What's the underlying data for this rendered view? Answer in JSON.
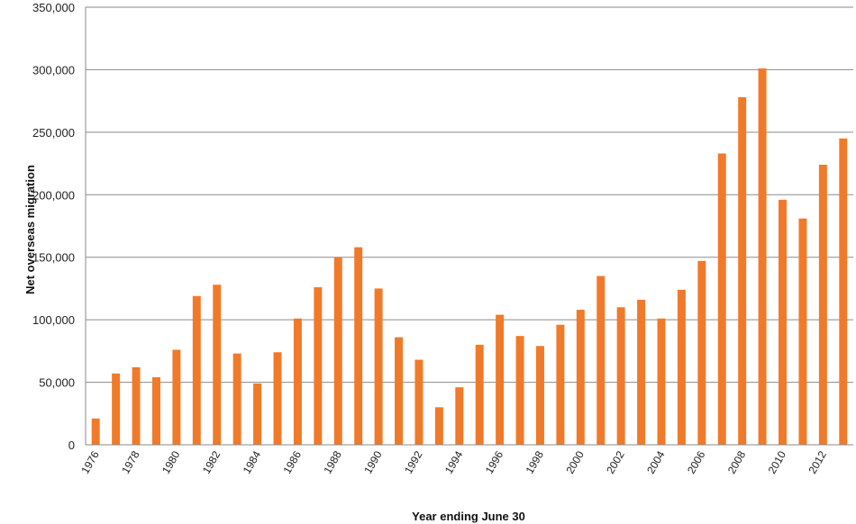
{
  "chart_data": {
    "type": "bar",
    "title": "",
    "xlabel": "Year ending June 30",
    "ylabel": "Net overseas migration",
    "ylim": [
      0,
      350000
    ],
    "yticks": [
      0,
      50000,
      100000,
      150000,
      200000,
      250000,
      300000,
      350000
    ],
    "ytick_labels": [
      "0",
      "50,000",
      "100,000",
      "150,000",
      "200,000",
      "250,000",
      "300,000",
      "350,000"
    ],
    "grid": true,
    "legend": "none",
    "bar_color": "#f07a2a",
    "categories": [
      "1976",
      "1977",
      "1978",
      "1979",
      "1980",
      "1981",
      "1982",
      "1983",
      "1984",
      "1985",
      "1986",
      "1987",
      "1988",
      "1989",
      "1990",
      "1991",
      "1992",
      "1993",
      "1994",
      "1995",
      "1996",
      "1997",
      "1998",
      "1999",
      "2000",
      "2001",
      "2002",
      "2003",
      "2004",
      "2005",
      "2006",
      "2007",
      "2008",
      "2009",
      "2010",
      "2011",
      "2012",
      "2013"
    ],
    "xtick_labels": [
      "1976",
      "1978",
      "1980",
      "1982",
      "1984",
      "1986",
      "1988",
      "1990",
      "1992",
      "1994",
      "1996",
      "1998",
      "2000",
      "2002",
      "2004",
      "2006",
      "2008",
      "2010",
      "2012"
    ],
    "values": [
      21000,
      57000,
      62000,
      54000,
      76000,
      119000,
      128000,
      73000,
      49000,
      74000,
      101000,
      126000,
      150000,
      158000,
      125000,
      86000,
      68000,
      30000,
      46000,
      80000,
      104000,
      87000,
      79000,
      96000,
      108000,
      135000,
      110000,
      116000,
      101000,
      124000,
      147000,
      233000,
      278000,
      301000,
      196000,
      181000,
      224000,
      245000
    ]
  }
}
